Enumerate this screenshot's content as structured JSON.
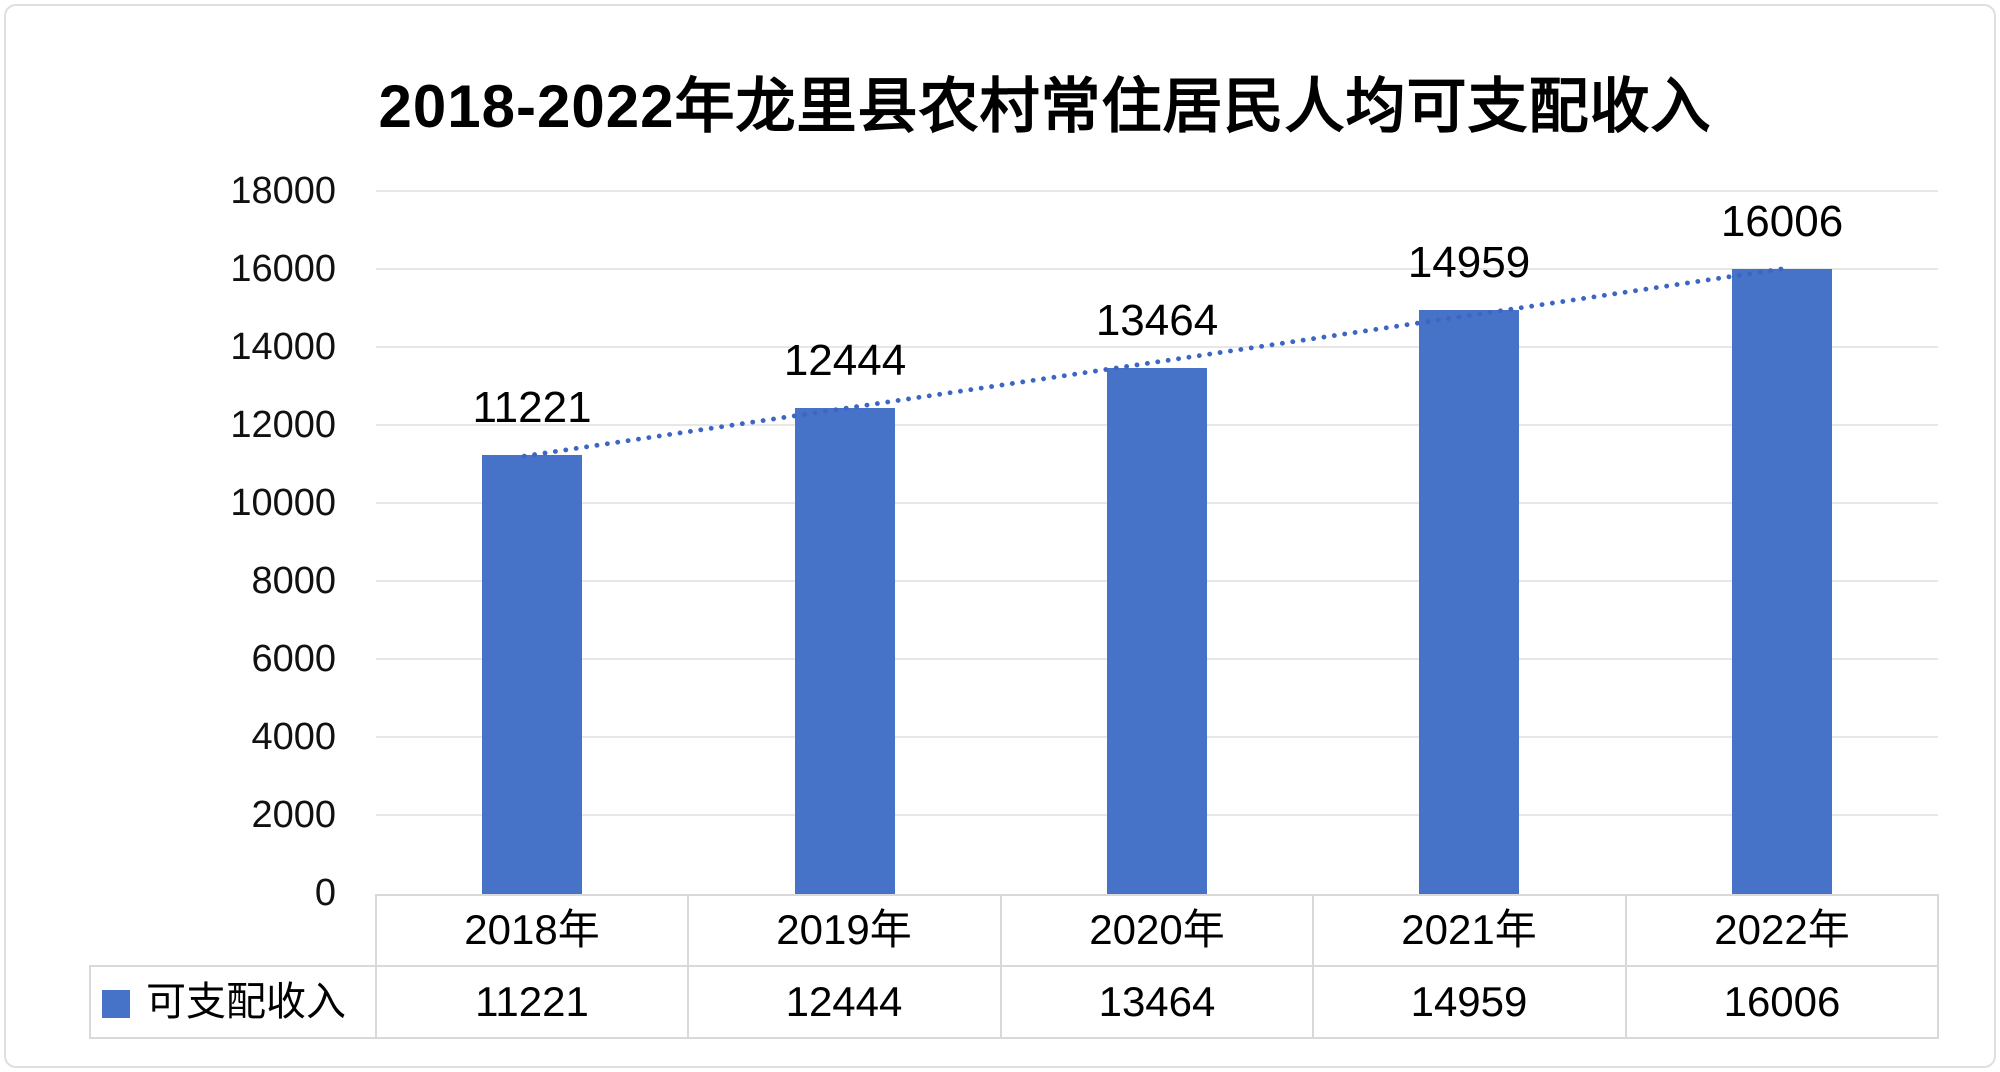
{
  "chart_data": {
    "type": "bar",
    "title": "2018-2022年龙里县农村常住居民人均可支配收入",
    "categories": [
      "2018年",
      "2019年",
      "2020年",
      "2021年",
      "2022年"
    ],
    "series": [
      {
        "name": "可支配收入",
        "values": [
          11221,
          12444,
          13464,
          14959,
          16006
        ]
      }
    ],
    "value_labels": [
      "11221",
      "12444",
      "13464",
      "14959",
      "16006"
    ],
    "ytick_labels": [
      "0",
      "2000",
      "4000",
      "6000",
      "8000",
      "10000",
      "12000",
      "14000",
      "16000",
      "18000"
    ],
    "ylim": [
      0,
      18000
    ],
    "ytick_interval": 2000,
    "grid": true,
    "legend_position": "bottom-table",
    "trendline": {
      "type": "linear",
      "style": "dotted",
      "start_value": 11202,
      "end_value": 16036
    }
  },
  "colors": {
    "bar": "#4673c8",
    "trendline": "#3d66c4",
    "legend_swatch": "#4673c8",
    "gridline": "#e7e7e7",
    "table_border": "#d9d9d9",
    "canvas_border": "#dedede",
    "text": "#000000"
  }
}
